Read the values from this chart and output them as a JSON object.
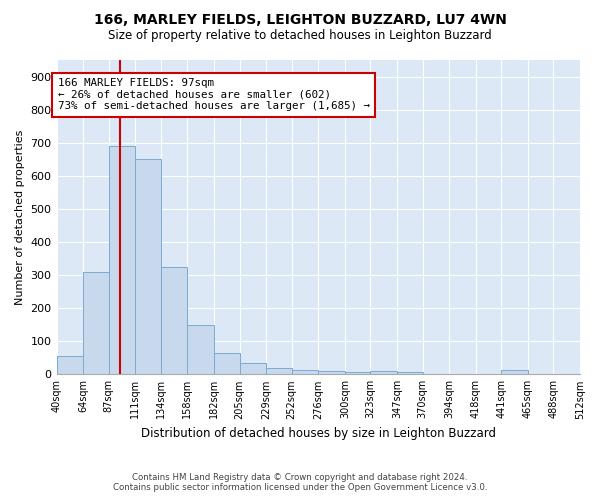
{
  "title1": "166, MARLEY FIELDS, LEIGHTON BUZZARD, LU7 4WN",
  "title2": "Size of property relative to detached houses in Leighton Buzzard",
  "xlabel": "Distribution of detached houses by size in Leighton Buzzard",
  "ylabel": "Number of detached properties",
  "footer1": "Contains HM Land Registry data © Crown copyright and database right 2024.",
  "footer2": "Contains public sector information licensed under the Open Government Licence v3.0.",
  "bin_edges": [
    40,
    64,
    87,
    111,
    134,
    158,
    182,
    205,
    229,
    252,
    276,
    300,
    323,
    347,
    370,
    394,
    418,
    441,
    465,
    488,
    512
  ],
  "bar_heights": [
    55,
    310,
    690,
    650,
    325,
    150,
    65,
    35,
    20,
    12,
    10,
    8,
    10,
    8,
    0,
    0,
    0,
    12,
    0,
    0
  ],
  "bar_color": "#c8d9ee",
  "bar_edge_color": "#7aabcf",
  "background_color": "#dce8f5",
  "grid_color": "#ffffff",
  "vline_x": 97,
  "vline_color": "#cc0000",
  "ylim": [
    0,
    950
  ],
  "yticks": [
    0,
    100,
    200,
    300,
    400,
    500,
    600,
    700,
    800,
    900
  ],
  "annotation_line1": "166 MARLEY FIELDS: 97sqm",
  "annotation_line2": "← 26% of detached houses are smaller (602)",
  "annotation_line3": "73% of semi-detached houses are larger (1,685) →",
  "annotation_box_color": "#cc0000",
  "property_sqm": 97
}
